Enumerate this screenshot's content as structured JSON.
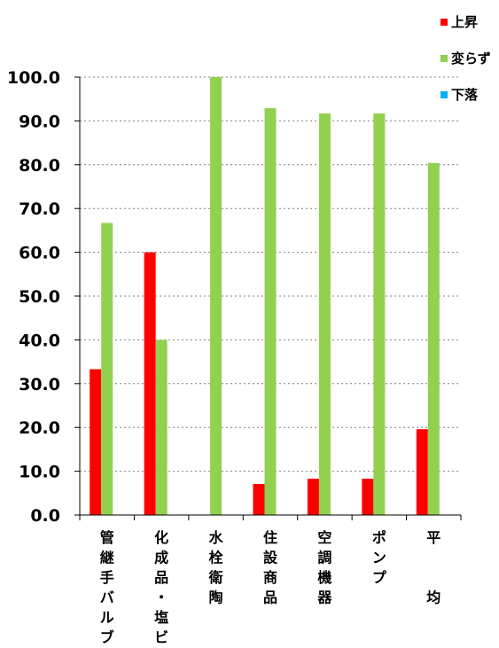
{
  "chart_data": {
    "type": "bar",
    "categories": [
      "管継手バルブ",
      "化成品・塩ビ",
      "水栓衛陶",
      "住設商品",
      "空調機器",
      "ポンプ",
      "平　　均"
    ],
    "series": [
      {
        "name": "上昇",
        "color": "#ff0000",
        "values": [
          33.3,
          60.0,
          0.0,
          7.1,
          8.3,
          8.3,
          19.6
        ]
      },
      {
        "name": "変らず",
        "color": "#92d050",
        "values": [
          66.7,
          40.0,
          100.0,
          92.9,
          91.7,
          91.7,
          80.4
        ]
      },
      {
        "name": "下落",
        "color": "#00b0f0",
        "values": [
          0.0,
          0.0,
          0.0,
          0.0,
          0.0,
          0.0,
          0.0
        ]
      }
    ],
    "ylim": [
      0,
      100
    ],
    "yticks": [
      "0.0",
      "10.0",
      "20.0",
      "30.0",
      "40.0",
      "50.0",
      "60.0",
      "70.0",
      "80.0",
      "90.0",
      "100.0"
    ],
    "grid": true,
    "legend_position": "top-right"
  }
}
